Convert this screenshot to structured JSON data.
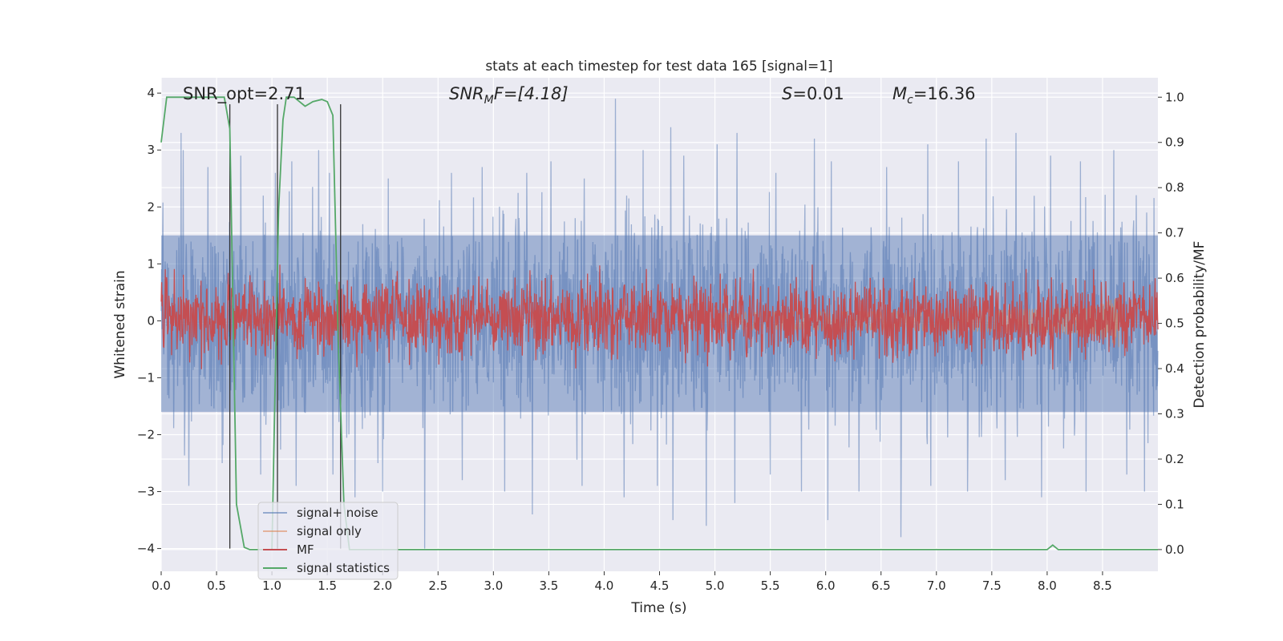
{
  "chart_data": {
    "type": "line",
    "title": "stats at each timestep for test data 165 [signal=1]",
    "xlabel": "Time (s)",
    "ylabel": "Whitened strain",
    "ylabel_right": "Detection probability/MF",
    "xlim": [
      0.0,
      9.0
    ],
    "ylim": [
      -4.4,
      4.27
    ],
    "ylim_right": [
      -0.048,
      1.043
    ],
    "x_ticks": [
      "0.0",
      "0.5",
      "1.0",
      "1.5",
      "2.0",
      "2.5",
      "3.0",
      "3.5",
      "4.0",
      "4.5",
      "5.0",
      "5.5",
      "6.0",
      "6.5",
      "7.0",
      "7.5",
      "8.0",
      "8.5"
    ],
    "y_ticks": [
      "−4",
      "−3",
      "−2",
      "−1",
      "0",
      "1",
      "2",
      "3",
      "4"
    ],
    "y_ticks_right": [
      "0.0",
      "0.1",
      "0.2",
      "0.3",
      "0.4",
      "0.5",
      "0.6",
      "0.7",
      "0.8",
      "0.9",
      "1.0"
    ],
    "grid": true,
    "background": "#EAEAF2",
    "legend_position": "lower-left",
    "annotations": {
      "snr_opt": "SNR_opt=2.71",
      "snr_mf_main": "SNR",
      "snr_mf_sub": "M",
      "snr_mf_rest": "F=[4.18]",
      "s_italic": "S",
      "s_rest": "=0.01",
      "mc_main": "M",
      "mc_sub": "c",
      "mc_rest": "=16.36"
    },
    "series": [
      {
        "name": "signal+ noise",
        "color": "#4C72B0",
        "axis": "left",
        "sample_rate_hz": 256,
        "t_end": 9.0,
        "band_upper": 1.5,
        "band_lower": -1.6,
        "spikes_up": [
          [
            0.18,
            3.3
          ],
          [
            0.2,
            3.0
          ],
          [
            0.42,
            2.7
          ],
          [
            0.72,
            2.9
          ],
          [
            0.92,
            2.2
          ],
          [
            1.03,
            2.6
          ],
          [
            1.18,
            2.8
          ],
          [
            1.42,
            3.0
          ],
          [
            1.52,
            2.6
          ],
          [
            2.05,
            2.5
          ],
          [
            2.38,
            2.2
          ],
          [
            2.62,
            2.6
          ],
          [
            2.9,
            2.7
          ],
          [
            3.3,
            2.6
          ],
          [
            3.52,
            2.8
          ],
          [
            3.82,
            2.5
          ],
          [
            4.1,
            3.9
          ],
          [
            4.35,
            3.0
          ],
          [
            4.6,
            3.4
          ],
          [
            4.72,
            2.9
          ],
          [
            5.02,
            3.1
          ],
          [
            5.2,
            3.3
          ],
          [
            5.55,
            2.6
          ],
          [
            5.9,
            3.2
          ],
          [
            6.05,
            2.8
          ],
          [
            6.3,
            3.1
          ],
          [
            6.55,
            2.7
          ],
          [
            6.92,
            3.1
          ],
          [
            7.2,
            2.8
          ],
          [
            7.45,
            3.2
          ],
          [
            7.72,
            3.3
          ],
          [
            8.03,
            2.9
          ],
          [
            8.3,
            2.8
          ],
          [
            8.6,
            3.0
          ],
          [
            8.88,
            2.6
          ]
        ],
        "spikes_down": [
          [
            0.25,
            -2.9
          ],
          [
            0.55,
            -2.5
          ],
          [
            0.9,
            -2.7
          ],
          [
            1.22,
            -2.9
          ],
          [
            1.55,
            -2.7
          ],
          [
            1.75,
            -3.1
          ],
          [
            2.0,
            -3.0
          ],
          [
            2.38,
            -4.0
          ],
          [
            2.72,
            -2.8
          ],
          [
            3.1,
            -3.0
          ],
          [
            3.35,
            -3.4
          ],
          [
            3.8,
            -2.9
          ],
          [
            4.18,
            -3.1
          ],
          [
            4.48,
            -2.9
          ],
          [
            4.62,
            -3.5
          ],
          [
            4.92,
            -3.6
          ],
          [
            5.18,
            -3.2
          ],
          [
            5.5,
            -2.7
          ],
          [
            5.78,
            -3.0
          ],
          [
            6.02,
            -3.5
          ],
          [
            6.3,
            -3.0
          ],
          [
            6.68,
            -3.8
          ],
          [
            6.95,
            -2.9
          ],
          [
            7.28,
            -3.0
          ],
          [
            7.62,
            -2.8
          ],
          [
            7.95,
            -3.1
          ],
          [
            8.35,
            -3.0
          ],
          [
            8.72,
            -2.7
          ],
          [
            8.88,
            -3.0
          ]
        ]
      },
      {
        "name": "signal only",
        "color": "#DD8452",
        "axis": "left",
        "t_start": 5.0,
        "t_end": 8.65,
        "end_amplitude": 0.55
      },
      {
        "name": "MF",
        "color": "#C44E52",
        "axis": "right",
        "base": 0.51,
        "jitter": 0.045,
        "peaks": [
          [
            0.12,
            0.62
          ],
          [
            1.07,
            0.63
          ],
          [
            1.3,
            0.6
          ],
          [
            3.85,
            0.61
          ],
          [
            4.38,
            0.62
          ],
          [
            5.05,
            0.61
          ],
          [
            5.88,
            0.63
          ],
          [
            6.8,
            0.6
          ],
          [
            7.62,
            0.59
          ],
          [
            8.26,
            0.6
          ],
          [
            8.42,
            0.62
          ]
        ]
      },
      {
        "name": "signal statistics",
        "color": "#55A868",
        "axis": "right",
        "x": [
          0.0,
          0.05,
          0.1,
          0.2,
          0.3,
          0.4,
          0.5,
          0.57,
          0.62,
          0.68,
          0.75,
          0.8,
          1.0,
          1.06,
          1.1,
          1.13,
          1.2,
          1.25,
          1.3,
          1.37,
          1.45,
          1.5,
          1.55,
          1.6,
          1.65,
          1.7,
          1.75,
          1.8,
          8.0,
          8.05,
          8.1,
          8.2,
          9.0
        ],
        "y": [
          0.9,
          1.0,
          1.0,
          1.0,
          1.0,
          1.0,
          1.0,
          1.0,
          0.93,
          0.1,
          0.005,
          0.0,
          0.0,
          0.75,
          0.95,
          1.0,
          1.0,
          0.99,
          0.98,
          0.99,
          0.995,
          0.99,
          0.96,
          0.45,
          0.1,
          0.0,
          0.0,
          0.0,
          0.0,
          0.01,
          0.0,
          0.0,
          0.0
        ]
      }
    ],
    "vertical_markers": [
      0.62,
      1.05,
      1.62
    ],
    "marker_color": "#333333"
  }
}
